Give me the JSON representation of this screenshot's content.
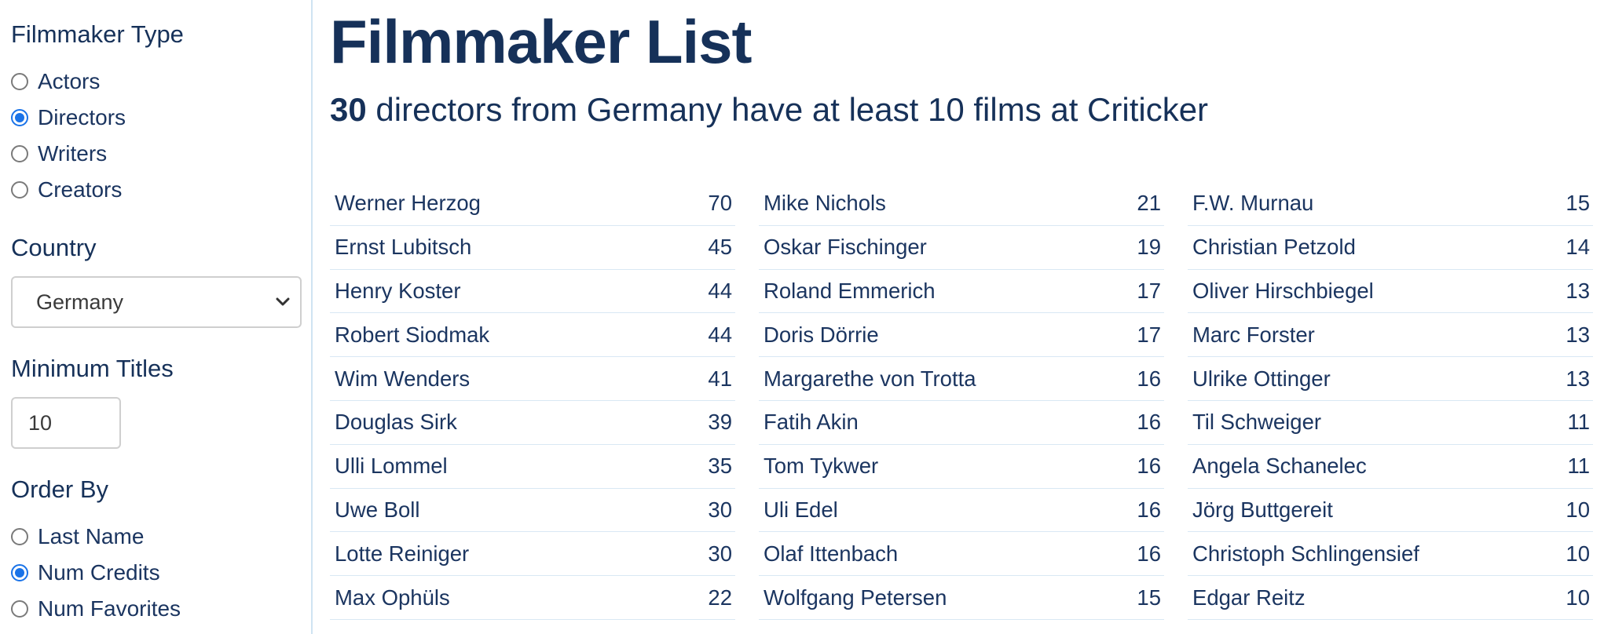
{
  "sidebar": {
    "filmmaker_type": {
      "heading": "Filmmaker Type",
      "options": [
        {
          "label": "Actors",
          "checked": false
        },
        {
          "label": "Directors",
          "checked": true
        },
        {
          "label": "Writers",
          "checked": false
        },
        {
          "label": "Creators",
          "checked": false
        }
      ]
    },
    "country": {
      "heading": "Country",
      "selected": "Germany"
    },
    "minimum_titles": {
      "heading": "Minimum Titles",
      "value": "10"
    },
    "order_by": {
      "heading": "Order By",
      "options": [
        {
          "label": "Last Name",
          "checked": false
        },
        {
          "label": "Num Credits",
          "checked": true
        },
        {
          "label": "Num Favorites",
          "checked": false
        }
      ]
    }
  },
  "main": {
    "title": "Filmmaker List",
    "subtitle_count": "30",
    "subtitle_text": " directors from Germany have at least 10 films at Criticker",
    "columns": [
      [
        {
          "name": "Werner Herzog",
          "count": "70"
        },
        {
          "name": "Ernst Lubitsch",
          "count": "45"
        },
        {
          "name": "Henry Koster",
          "count": "44"
        },
        {
          "name": "Robert Siodmak",
          "count": "44"
        },
        {
          "name": "Wim Wenders",
          "count": "41"
        },
        {
          "name": "Douglas Sirk",
          "count": "39"
        },
        {
          "name": "Ulli Lommel",
          "count": "35"
        },
        {
          "name": "Uwe Boll",
          "count": "30"
        },
        {
          "name": "Lotte Reiniger",
          "count": "30"
        },
        {
          "name": "Max Ophüls",
          "count": "22"
        }
      ],
      [
        {
          "name": "Mike Nichols",
          "count": "21"
        },
        {
          "name": "Oskar Fischinger",
          "count": "19"
        },
        {
          "name": "Roland Emmerich",
          "count": "17"
        },
        {
          "name": "Doris Dörrie",
          "count": "17"
        },
        {
          "name": "Margarethe von Trotta",
          "count": "16"
        },
        {
          "name": "Fatih Akin",
          "count": "16"
        },
        {
          "name": "Tom Tykwer",
          "count": "16"
        },
        {
          "name": "Uli Edel",
          "count": "16"
        },
        {
          "name": "Olaf Ittenbach",
          "count": "16"
        },
        {
          "name": "Wolfgang Petersen",
          "count": "15"
        }
      ],
      [
        {
          "name": "F.W. Murnau",
          "count": "15"
        },
        {
          "name": "Christian Petzold",
          "count": "14"
        },
        {
          "name": "Oliver Hirschbiegel",
          "count": "13"
        },
        {
          "name": "Marc Forster",
          "count": "13"
        },
        {
          "name": "Ulrike Ottinger",
          "count": "13"
        },
        {
          "name": "Til Schweiger",
          "count": "11"
        },
        {
          "name": "Angela Schanelec",
          "count": "11"
        },
        {
          "name": "Jörg Buttgereit",
          "count": "10"
        },
        {
          "name": "Christoph Schlingensief",
          "count": "10"
        },
        {
          "name": "Edgar Reitz",
          "count": "10"
        }
      ]
    ]
  },
  "colors": {
    "heading": "#163159",
    "text": "#1b3560",
    "radio_accent": "#1a73e8",
    "divider": "#cfe3f2"
  }
}
